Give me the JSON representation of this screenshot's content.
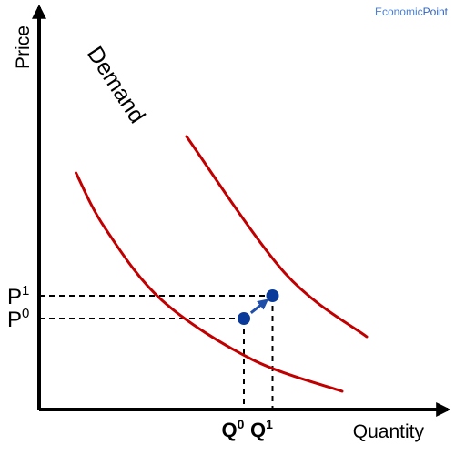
{
  "brand": {
    "part1": "Economic",
    "part2": "Point"
  },
  "colors": {
    "curve": "#c00000",
    "point": "#0a3a99",
    "arrow": "#1f4fa8",
    "axis": "#000000",
    "brand_light": "#4a7fd4",
    "brand_dark": "#2f62c0"
  },
  "chart_data": {
    "type": "line",
    "title": "",
    "xlabel": "Quantity",
    "ylabel": "Price",
    "curve_label": "Demand",
    "series": [
      {
        "name": "Demand",
        "role": "original demand curve",
        "points": [
          [
            0.9,
            2.6
          ],
          [
            1.6,
            2.0
          ],
          [
            3.0,
            1.2
          ],
          [
            5.2,
            0.55
          ],
          [
            7.4,
            0.2
          ]
        ]
      },
      {
        "role": "shifted demand curve",
        "points": [
          [
            3.6,
            3.0
          ],
          [
            6.0,
            1.5
          ],
          [
            8.0,
            0.8
          ]
        ]
      }
    ],
    "points": [
      {
        "label": "P0 / Q0",
        "x": 5.0,
        "y": 1.0
      },
      {
        "label": "P1 / Q1",
        "x": 5.7,
        "y": 1.25
      }
    ],
    "ticks": {
      "x": [
        {
          "base": "Q",
          "sup": "0",
          "value": 5.0
        },
        {
          "base": "Q",
          "sup": "1",
          "value": 5.7
        }
      ],
      "y": [
        {
          "base": "P",
          "sup": "0",
          "value": 1.0
        },
        {
          "base": "P",
          "sup": "1",
          "value": 1.25
        }
      ]
    },
    "shift_arrow": {
      "from": "P0 / Q0",
      "to": "P1 / Q1"
    },
    "xlim": [
      0,
      10
    ],
    "ylim": [
      0,
      3.6
    ],
    "grid": false,
    "guide_lines": "dashed"
  }
}
